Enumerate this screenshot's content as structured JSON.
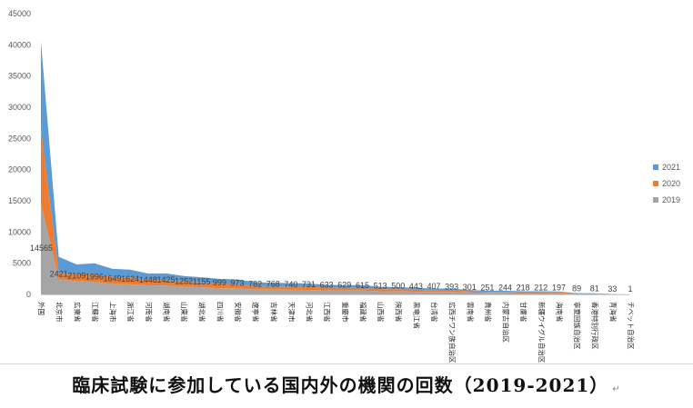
{
  "caption": "臨床試験に参加している国内外の機関の回数（2019-2021）",
  "return_mark": "↵",
  "chart_data": {
    "type": "area",
    "stacked": true,
    "ylim": [
      0,
      45000
    ],
    "yticks": [
      0,
      5000,
      10000,
      15000,
      20000,
      25000,
      30000,
      35000,
      40000,
      45000
    ],
    "grid": false,
    "legend_position": "right",
    "categories": [
      "外国",
      "北京市",
      "広東省",
      "江蘇省",
      "上海市",
      "浙江省",
      "河南省",
      "湖南省",
      "山東省",
      "湖北省",
      "四川省",
      "安徽省",
      "遼寧省",
      "吉林省",
      "天津市",
      "河北省",
      "江西省",
      "重慶市",
      "福建省",
      "山西省",
      "陝西省",
      "黒竜江省",
      "台湾省",
      "広西チワン族自治区",
      "雲南省",
      "貴州省",
      "内蒙古自治区",
      "甘粛省",
      "新疆ウイグル自治区",
      "海南省",
      "寧夏回族自治区",
      "香港特別行政区",
      "青海省",
      "チベット自治区"
    ],
    "series": [
      {
        "name": "2019",
        "color": "#a5a5a5",
        "values": [
          14565,
          2421,
          2109,
          1996,
          1649,
          1624,
          1448,
          1425,
          1252,
          1155,
          999,
          973,
          782,
          768,
          740,
          731,
          633,
          629,
          615,
          513,
          500,
          443,
          407,
          393,
          301,
          251,
          244,
          218,
          212,
          197,
          89,
          81,
          33,
          1
        ]
      },
      {
        "name": "2020",
        "color": "#ed7d31",
        "values": [
          12000,
          1000,
          1100,
          1200,
          1150,
          1050,
          900,
          850,
          800,
          750,
          700,
          680,
          560,
          540,
          520,
          500,
          440,
          430,
          420,
          350,
          330,
          300,
          270,
          260,
          200,
          170,
          160,
          145,
          140,
          130,
          60,
          50,
          22,
          2
        ]
      },
      {
        "name": "2021",
        "color": "#5b9bd5",
        "values": [
          14000,
          2600,
          1600,
          1800,
          1300,
          1300,
          1000,
          1100,
          900,
          850,
          800,
          750,
          600,
          560,
          540,
          520,
          460,
          440,
          450,
          360,
          340,
          300,
          280,
          270,
          210,
          180,
          170,
          150,
          150,
          140,
          60,
          55,
          23,
          2
        ]
      }
    ],
    "data_labels": {
      "series": "2019",
      "values": [
        14565,
        2421,
        2109,
        1996,
        1649,
        1624,
        1448,
        1425,
        1252,
        1155,
        999,
        973,
        782,
        768,
        740,
        731,
        633,
        629,
        615,
        513,
        500,
        443,
        407,
        393,
        301,
        251,
        244,
        218,
        212,
        197,
        89,
        81,
        33,
        1
      ]
    }
  }
}
